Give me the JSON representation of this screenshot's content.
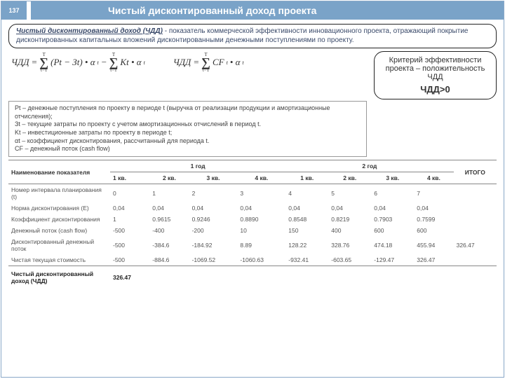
{
  "page_number": "137",
  "title": "Чистый дисконтированный доход проекта",
  "definition_lead": "Чистый дисконтированный доход (ЧДД)",
  "definition_rest": " - показатель коммерческой эффективности инновационного проекта, отражающий покрытие дисконтированных капитальных вложений дисконтированными денежными поступлениями по проекту.",
  "formula1_lhs": "ЧДД",
  "formula1_body1": "(Pt − Зt) • α",
  "formula1_body2": "Kt • α",
  "formula2_lhs": "ЧДД",
  "formula2_body": "CF",
  "formula2_tail": " • α",
  "sigma_top": "T",
  "sigma_bot": "t=1",
  "criteria_text": "Критерий эффективности проекта – положительность ЧДД",
  "criteria_cond": "ЧДД>0",
  "legend": {
    "l1": "Pt –  денежные поступления по проекту в периоде t (выручка от реализации продукции и амортизационные отчисления);",
    "l2": "Зt – текущие затраты по проекту с учетом амортизационных отчислений в период t.",
    "l3": "Kt – инвестиционные затраты по проекту в периоде t;",
    "l4": "αt – коэффициент дисконтирования, рассчитанный для периода t.",
    "l5": "CF – денежный поток (cash flow)"
  },
  "table": {
    "head_indicator": "Наименование показателя",
    "head_y1": "1 год",
    "head_y2": "2 год",
    "head_total": "ИТОГО",
    "subhead": [
      "1 кв.",
      "2 кв.",
      "3 кв.",
      "4 кв.",
      "1 кв.",
      "2 кв.",
      "3 кв.",
      "4 кв."
    ],
    "rows": [
      {
        "name": "Номер интервала планирования (t)",
        "v": [
          "0",
          "1",
          "2",
          "3",
          "4",
          "5",
          "6",
          "7",
          ""
        ]
      },
      {
        "name": "Норма дисконтирования (Е)",
        "v": [
          "0,04",
          "0,04",
          "0,04",
          "0,04",
          "0,04",
          "0,04",
          "0,04",
          "0,04",
          ""
        ]
      },
      {
        "name": "Коэффициент дисконтирования",
        "v": [
          "1",
          "0.9615",
          "0.9246",
          "0.8890",
          "0.8548",
          "0.8219",
          "0.7903",
          "0.7599",
          ""
        ]
      },
      {
        "name": "Денежный поток (cash flow)",
        "v": [
          "-500",
          "-400",
          "-200",
          "10",
          "150",
          "400",
          "600",
          "600",
          ""
        ]
      },
      {
        "name": "Дисконтированный денежный поток",
        "v": [
          "-500",
          "-384.6",
          "-184.92",
          "8.89",
          "128.22",
          "328.76",
          "474.18",
          "455.94",
          "326.47"
        ]
      },
      {
        "name": "Чистая текущая стоимость",
        "v": [
          "-500",
          "-884.6",
          "-1069.52",
          "-1060.63",
          "-932.41",
          "-603.65",
          "-129.47",
          "326.47",
          ""
        ]
      }
    ],
    "final_name": "Чистый дисконтированный доход (ЧДД)",
    "final_val": "326.47"
  },
  "colors": {
    "accent": "#7aa3c8",
    "border": "#8aa8c8",
    "text": "#333333"
  }
}
